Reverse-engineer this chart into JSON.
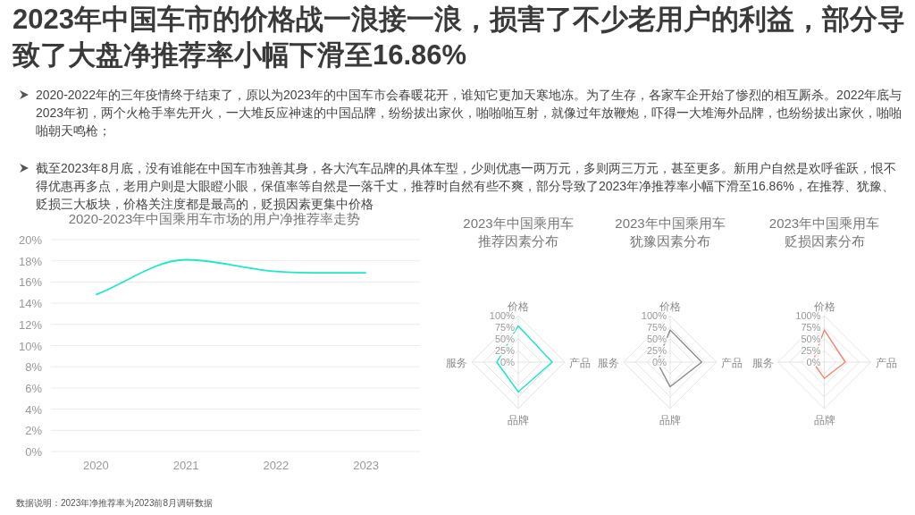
{
  "chart_data": [
    {
      "type": "other",
      "title": "2023年中国车市的价格战一浪接一浪，损害了不少老用户的利益，部分导致了大盘净推荐率小幅下滑至16.86%",
      "annotations": [
        "2020-2022年的三年疫情终于结束了，原以为2023年的中国车市会春暖花开，谁知它更加天寒地冻。为了生存，各家车企开始了惨烈的相互厮杀。2022年底与2023年初，两个火枪手率先开火，一大堆反应神速的中国品牌，纷纷拔出家伙，啪啪啪互射，就像过年放鞭炮，吓得一大堆海外品牌，也纷纷拔出家伙，啪啪啪朝天鸣枪；",
        "截至2023年8月底，没有谁能在中国车市独善其身，各大汽车品牌的具体车型，少则优惠一两万元，多则两三万元，甚至更多。新用户自然是欢呼雀跃，恨不得优惠再多点，老用户则是大眼瞪小眼，保值率等自然是一落千丈，推荐时自然有些不爽，部分导致了2023年净推荐率小幅下滑至16.86%，在推荐、犹豫、贬损三大板块，价格关注度都是最高的，贬损因素更集中价格"
      ]
    },
    {
      "type": "line",
      "title": "2020-2023年中国乘用车市场的用户净推荐率走势",
      "categories": [
        "2020",
        "2021",
        "2022",
        "2023"
      ],
      "series": [
        {
          "color": "#1ee8c8",
          "values": [
            14.8,
            18.1,
            17.0,
            16.86
          ]
        }
      ],
      "ylim": [
        0,
        20
      ],
      "yticks": [
        {
          "value": 0,
          "label": "0%"
        },
        {
          "value": 2,
          "label": "2%"
        },
        {
          "value": 4,
          "label": "4%"
        },
        {
          "value": 6,
          "label": "6%"
        },
        {
          "value": 8,
          "label": "8%"
        },
        {
          "value": 10,
          "label": "10%"
        },
        {
          "value": 12,
          "label": "12%"
        },
        {
          "value": 14,
          "label": "14%"
        },
        {
          "value": 16,
          "label": "16%"
        },
        {
          "value": 18,
          "label": "18%"
        },
        {
          "value": 20,
          "label": "20%"
        }
      ],
      "grid": "y",
      "marker": "none",
      "line_style": "solid",
      "annotations": [
        "数据说明：2023年净推荐率为2023前8月调研数据"
      ]
    },
    {
      "type": "radar",
      "title": "2023年中国乘用车推荐因素分布",
      "categories": [
        "价格",
        "产品",
        "品牌",
        "服务"
      ],
      "series": [
        {
          "color": "#19e6c8",
          "values": [
            78,
            73,
            64,
            46
          ]
        }
      ],
      "ylim": [
        0,
        100
      ],
      "yticks": [
        {
          "value": 0,
          "label": "0%"
        },
        {
          "value": 25,
          "label": "25%"
        },
        {
          "value": 50,
          "label": "50%"
        },
        {
          "value": 75,
          "label": "75%"
        },
        {
          "value": 100,
          "label": "100%"
        }
      ]
    },
    {
      "type": "radar",
      "title": "2023年中国乘用车犹豫因素分布",
      "categories": [
        "价格",
        "产品",
        "品牌",
        "服务"
      ],
      "series": [
        {
          "color": "#8a8a8a",
          "values": [
            69,
            68,
            53,
            28
          ]
        }
      ],
      "ylim": [
        0,
        100
      ],
      "yticks": [
        {
          "value": 0,
          "label": "0%"
        },
        {
          "value": 25,
          "label": "25%"
        },
        {
          "value": 50,
          "label": "50%"
        },
        {
          "value": 75,
          "label": "75%"
        },
        {
          "value": 100,
          "label": "100%"
        }
      ]
    },
    {
      "type": "radar",
      "title": "2023年中国乘用车贬损因素分布",
      "categories": [
        "价格",
        "产品",
        "品牌",
        "服务"
      ],
      "series": [
        {
          "color": "#f4846c",
          "values": [
            69,
            45,
            35,
            25
          ]
        }
      ],
      "ylim": [
        0,
        100
      ],
      "yticks": [
        {
          "value": 0,
          "label": "0%"
        },
        {
          "value": 25,
          "label": "25%"
        },
        {
          "value": 50,
          "label": "50%"
        },
        {
          "value": 75,
          "label": "75%"
        },
        {
          "value": 100,
          "label": "100%"
        }
      ]
    }
  ]
}
